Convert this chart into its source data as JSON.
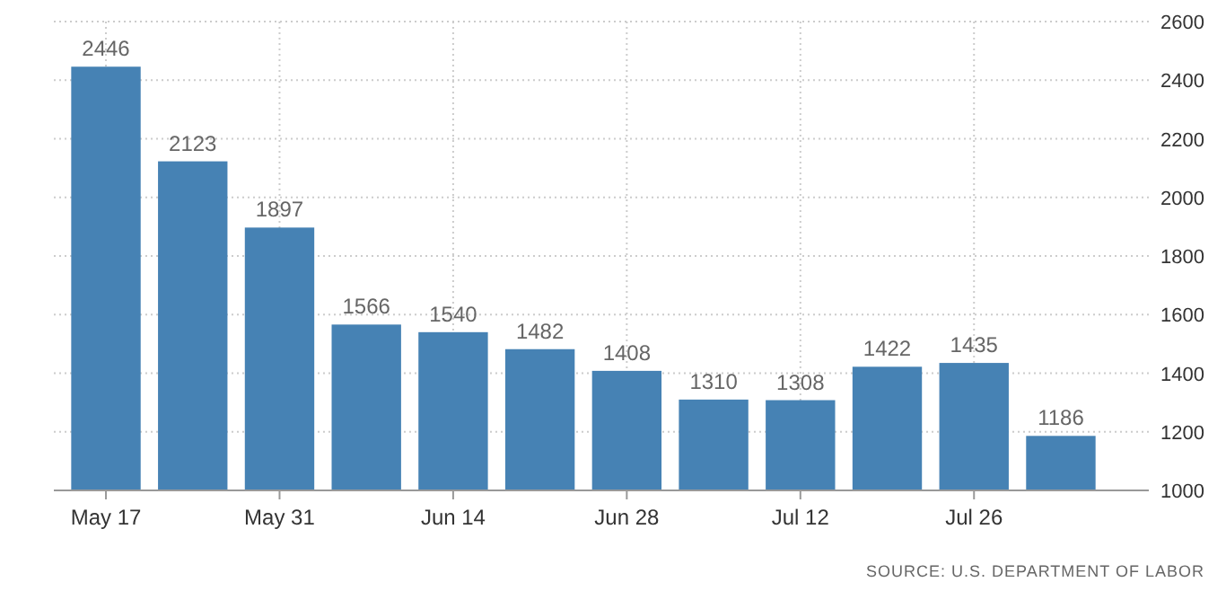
{
  "chart_data": {
    "type": "bar",
    "categories": [
      "May 17",
      null,
      "May 31",
      null,
      "Jun 14",
      null,
      "Jun 28",
      null,
      "Jul 12",
      null,
      "Jul 26",
      null
    ],
    "values": [
      2446,
      2123,
      1897,
      1566,
      1540,
      1482,
      1408,
      1310,
      1308,
      1422,
      1435,
      1186
    ],
    "color": "#4682b4",
    "ylim": [
      1000,
      2600
    ],
    "yticks": [
      1000,
      1200,
      1400,
      1600,
      1800,
      2000,
      2200,
      2400,
      2600
    ],
    "grid": true,
    "data_labels": true,
    "annotations": [
      "SOURCE: U.S. DEPARTMENT OF LABOR"
    ]
  }
}
